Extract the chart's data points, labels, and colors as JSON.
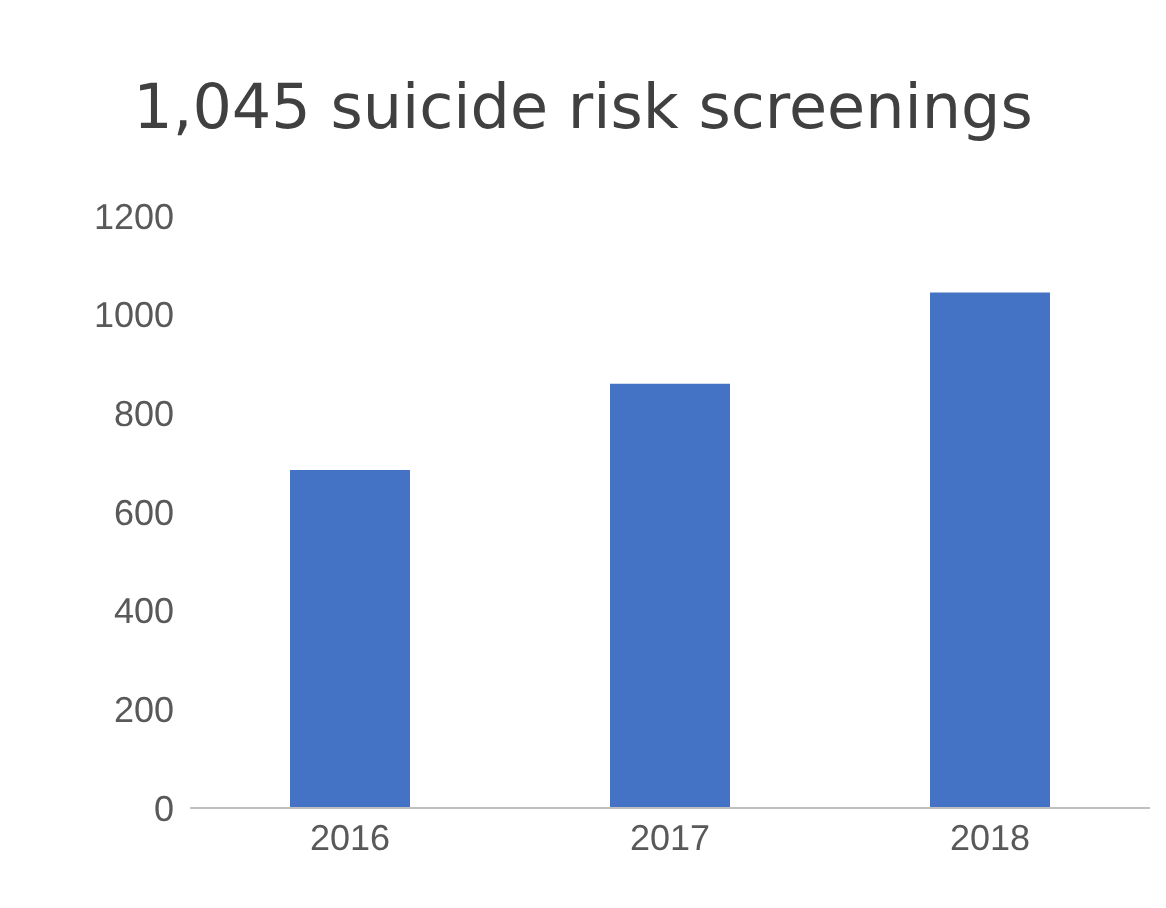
{
  "chart_data": {
    "type": "bar",
    "title": "1,045 suicide risk screenings",
    "categories": [
      "2016",
      "2017",
      "2018"
    ],
    "values": [
      685,
      860,
      1045
    ],
    "color": "#4472c4",
    "ylim": [
      0,
      1200
    ],
    "yticks": [
      0,
      200,
      400,
      600,
      800,
      1000,
      1200
    ],
    "grid": false
  }
}
